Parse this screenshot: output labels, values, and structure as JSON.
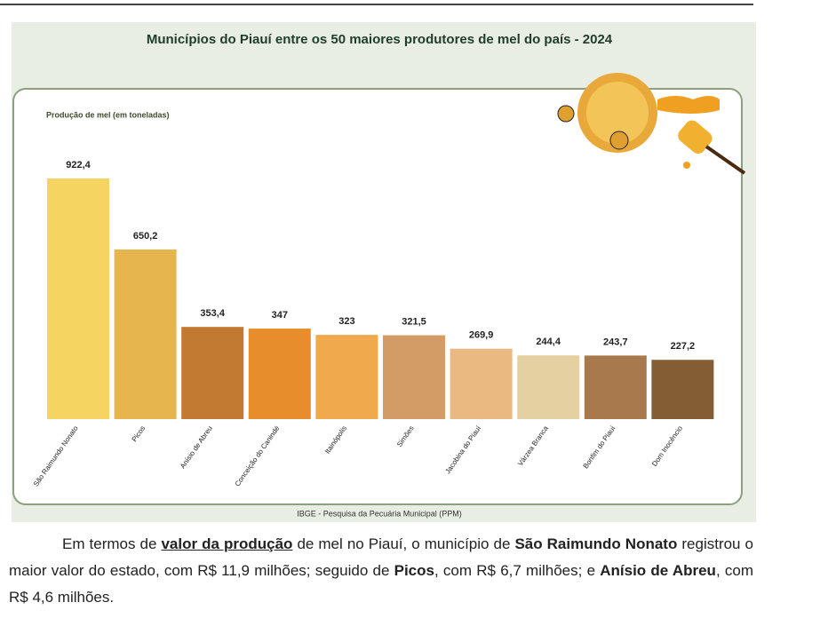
{
  "chart_data": {
    "type": "bar",
    "title": "Municípios do Piauí entre os 50 maiores produtores de mel do país - 2024",
    "subtitle": "Produção de mel (em toneladas)",
    "source": "IBGE - Pesquisa da Pecuária Municipal (PPM)",
    "categories": [
      "São Raimundo Nonato",
      "Picos",
      "Anísio de Abreu",
      "Conceição do Canindé",
      "Itainópolis",
      "Simões",
      "Jacobina do Piauí",
      "Várzea Branca",
      "Bonfim do Piauí",
      "Dom Inocêncio"
    ],
    "values": [
      922.4,
      650.2,
      353.4,
      347,
      323,
      321.5,
      269.9,
      244.4,
      243.7,
      227.2
    ],
    "value_labels": [
      "922,4",
      "650,2",
      "353,4",
      "347",
      "323",
      "321,5",
      "269,9",
      "244,4",
      "243,7",
      "227,2"
    ],
    "colors": [
      "#f5d462",
      "#e6b54e",
      "#c27a33",
      "#e88d2c",
      "#f0a94c",
      "#d39c66",
      "#e9b981",
      "#e5d0a2",
      "#a8794c",
      "#855d34"
    ],
    "grid": false
  },
  "paragraph": {
    "runs": [
      {
        "text": "Em termos de ",
        "format": "plain"
      },
      {
        "text": "valor da produção",
        "format": "bold-underline"
      },
      {
        "text": " de mel no Piauí, o município de ",
        "format": "plain"
      },
      {
        "text": "São Raimundo Nonato",
        "format": "bold"
      },
      {
        "text": " registrou o maior valor do estado, com R$ 11,9 milhões; seguido de ",
        "format": "plain"
      },
      {
        "text": "Picos",
        "format": "bold"
      },
      {
        "text": ", com R$ 6,7 milhões; e ",
        "format": "plain"
      },
      {
        "text": "Anísio de Abreu",
        "format": "bold"
      },
      {
        "text": ", com R$ 4,6 milhões.",
        "format": "plain"
      }
    ]
  }
}
